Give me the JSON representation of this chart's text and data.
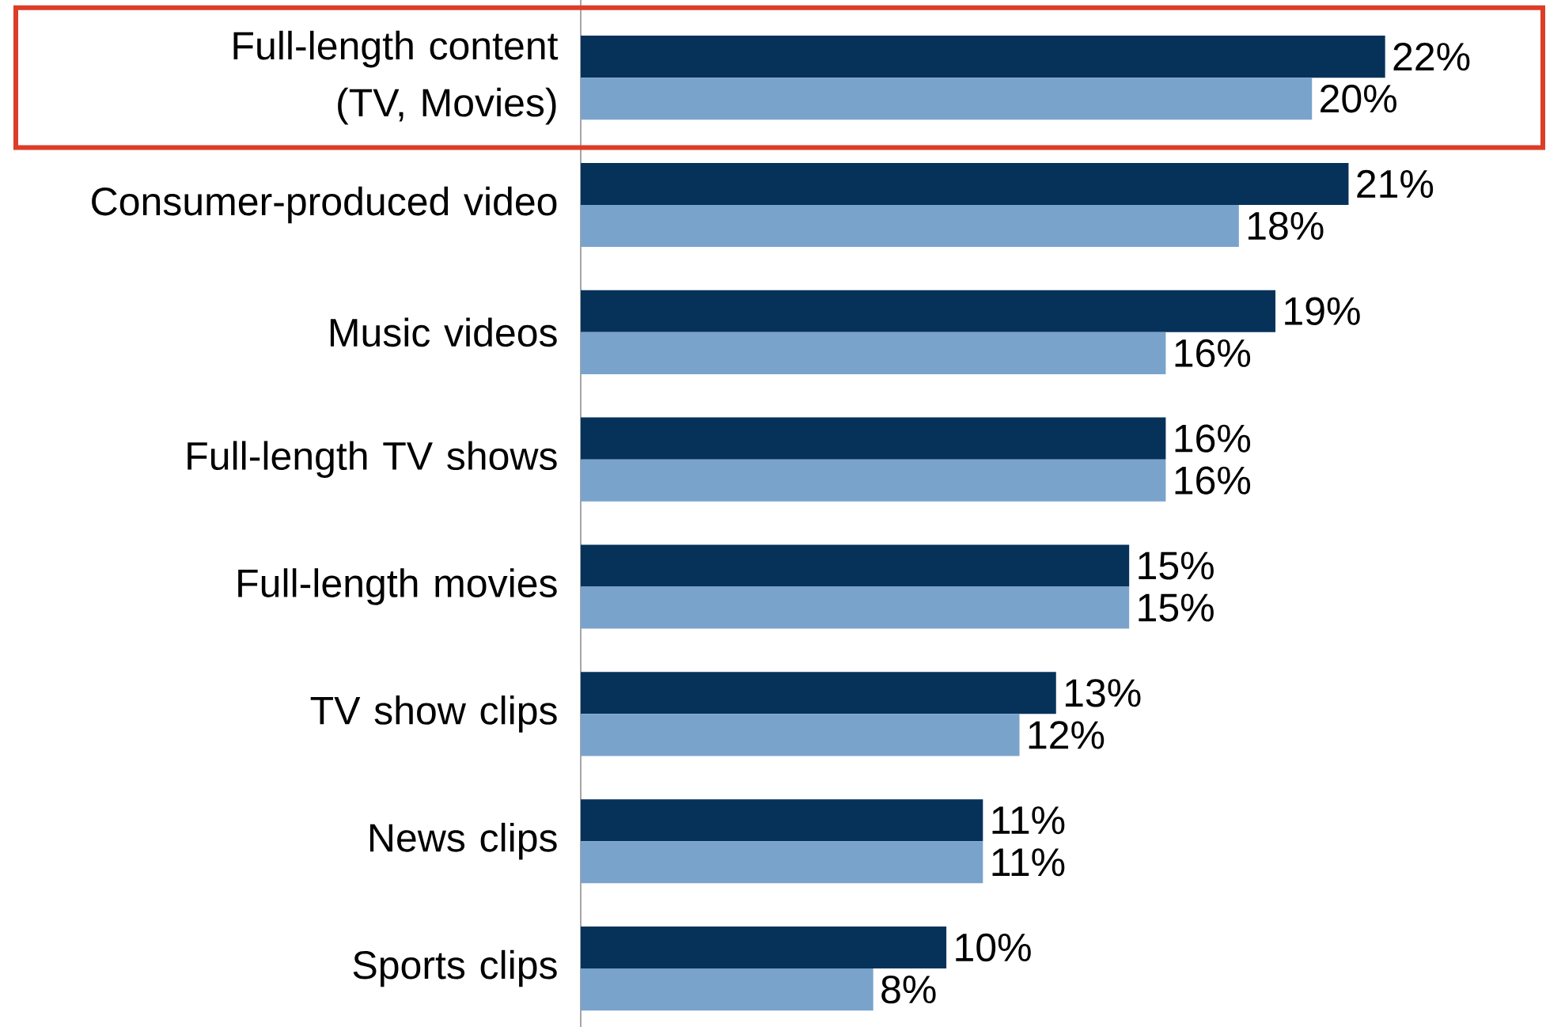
{
  "chart_data": {
    "type": "bar",
    "orientation": "horizontal",
    "categories": [
      "Full-length content (TV, Movies)",
      "Consumer-produced video",
      "Music videos",
      "Full-length TV shows",
      "Full-length movies",
      "TV show clips",
      "News clips",
      "Sports clips"
    ],
    "series": [
      {
        "color": "#06325a",
        "values": [
          22,
          21,
          19,
          16,
          15,
          13,
          11,
          10
        ],
        "value_labels": [
          "22%",
          "21%",
          "19%",
          "16%",
          "15%",
          "13%",
          "11%",
          "10%"
        ]
      },
      {
        "color": "#7aa3cc",
        "values": [
          20,
          18,
          16,
          16,
          15,
          12,
          11,
          8
        ],
        "value_labels": [
          "20%",
          "18%",
          "16%",
          "16%",
          "15%",
          "12%",
          "11%",
          "8%"
        ]
      }
    ]
  }
}
